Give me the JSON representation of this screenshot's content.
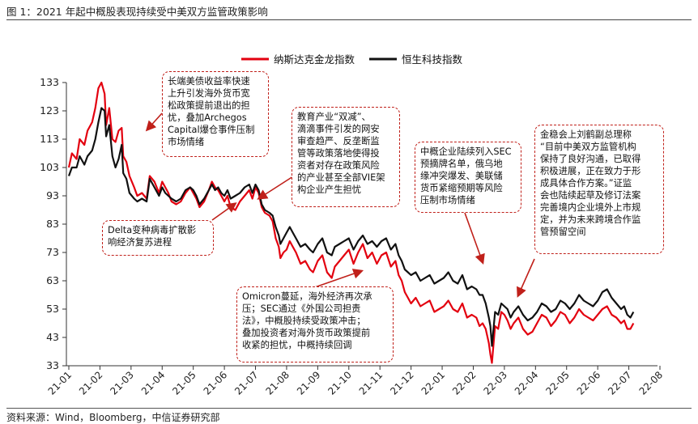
{
  "title": "图 1：2021 年起中概股表现持续受中美双方监管政策影响",
  "source": "资料来源：Wind，Bloomberg，中信证券研究部",
  "colors": {
    "nasdaq_china": "#e3000f",
    "hang_seng_tech": "#111111",
    "annotation_border": "#c0201a"
  },
  "chart_data": {
    "type": "line",
    "title": "",
    "xlabel": "",
    "ylabel": "",
    "ylim": [
      33,
      133
    ],
    "yticks": [
      33,
      43,
      53,
      63,
      73,
      83,
      93,
      103,
      113,
      123,
      133
    ],
    "x_tick_labels": [
      "21-01",
      "21-02",
      "21-03",
      "21-04",
      "21-05",
      "21-06",
      "21-07",
      "21-08",
      "21-09",
      "21-10",
      "21-11",
      "21-12",
      "22-01",
      "22-02",
      "22-03",
      "22-04",
      "22-05",
      "22-06",
      "22-07",
      "22-08"
    ],
    "legend_position": "top-center",
    "grid": false,
    "series": [
      {
        "name": "纳斯达克金龙指数",
        "color": "#e3000f",
        "points": [
          [
            0.0,
            103
          ],
          [
            0.1,
            108
          ],
          [
            0.25,
            106
          ],
          [
            0.35,
            113
          ],
          [
            0.5,
            111
          ],
          [
            0.6,
            116
          ],
          [
            0.75,
            119
          ],
          [
            0.85,
            124
          ],
          [
            0.95,
            131
          ],
          [
            1.05,
            133
          ],
          [
            1.15,
            129
          ],
          [
            1.2,
            118
          ],
          [
            1.3,
            124
          ],
          [
            1.4,
            113
          ],
          [
            1.5,
            112
          ],
          [
            1.6,
            116
          ],
          [
            1.7,
            117
          ],
          [
            1.75,
            107
          ],
          [
            1.85,
            105
          ],
          [
            1.95,
            100
          ],
          [
            2.1,
            96
          ],
          [
            2.2,
            93
          ],
          [
            2.35,
            94
          ],
          [
            2.5,
            92
          ],
          [
            2.6,
            100
          ],
          [
            2.75,
            98
          ],
          [
            2.9,
            94
          ],
          [
            3.0,
            98
          ],
          [
            3.1,
            96
          ],
          [
            3.2,
            94
          ],
          [
            3.3,
            91
          ],
          [
            3.45,
            90
          ],
          [
            3.6,
            91
          ],
          [
            3.75,
            94
          ],
          [
            3.9,
            96
          ],
          [
            4.0,
            94
          ],
          [
            4.1,
            92
          ],
          [
            4.2,
            89
          ],
          [
            4.35,
            91
          ],
          [
            4.5,
            95
          ],
          [
            4.6,
            98
          ],
          [
            4.7,
            96
          ],
          [
            4.8,
            95
          ],
          [
            4.9,
            93
          ],
          [
            5.0,
            91
          ],
          [
            5.1,
            93
          ],
          [
            5.2,
            89
          ],
          [
            5.35,
            88
          ],
          [
            5.5,
            91
          ],
          [
            5.65,
            93
          ],
          [
            5.8,
            95
          ],
          [
            5.9,
            92
          ],
          [
            6.0,
            96
          ],
          [
            6.1,
            94
          ],
          [
            6.2,
            89
          ],
          [
            6.3,
            87
          ],
          [
            6.45,
            86
          ],
          [
            6.55,
            84
          ],
          [
            6.65,
            78
          ],
          [
            6.75,
            75
          ],
          [
            6.8,
            71
          ],
          [
            6.9,
            73
          ],
          [
            7.0,
            74
          ],
          [
            7.1,
            77
          ],
          [
            7.2,
            75
          ],
          [
            7.3,
            73
          ],
          [
            7.45,
            69
          ],
          [
            7.6,
            70
          ],
          [
            7.75,
            67
          ],
          [
            7.85,
            66
          ],
          [
            8.0,
            70
          ],
          [
            8.15,
            72
          ],
          [
            8.3,
            66
          ],
          [
            8.45,
            64
          ],
          [
            8.55,
            68
          ],
          [
            8.7,
            70
          ],
          [
            8.85,
            72
          ],
          [
            9.0,
            74
          ],
          [
            9.15,
            69
          ],
          [
            9.3,
            73
          ],
          [
            9.45,
            76
          ],
          [
            9.6,
            71
          ],
          [
            9.75,
            73
          ],
          [
            9.9,
            69
          ],
          [
            10.05,
            72
          ],
          [
            10.2,
            73
          ],
          [
            10.35,
            68
          ],
          [
            10.5,
            70
          ],
          [
            10.6,
            65
          ],
          [
            10.7,
            63
          ],
          [
            10.8,
            59
          ],
          [
            10.9,
            57
          ],
          [
            11.0,
            55
          ],
          [
            11.15,
            57
          ],
          [
            11.3,
            54
          ],
          [
            11.45,
            55
          ],
          [
            11.6,
            56
          ],
          [
            11.75,
            52
          ],
          [
            11.9,
            53
          ],
          [
            12.05,
            54
          ],
          [
            12.2,
            56
          ],
          [
            12.35,
            53
          ],
          [
            12.5,
            52
          ],
          [
            12.65,
            55
          ],
          [
            12.8,
            50
          ],
          [
            12.95,
            51
          ],
          [
            13.1,
            50
          ],
          [
            13.2,
            47
          ],
          [
            13.3,
            48
          ],
          [
            13.4,
            46
          ],
          [
            13.5,
            41
          ],
          [
            13.55,
            37
          ],
          [
            13.6,
            34
          ],
          [
            13.7,
            47
          ],
          [
            13.8,
            46
          ],
          [
            13.9,
            52
          ],
          [
            14.0,
            51
          ],
          [
            14.1,
            49
          ],
          [
            14.2,
            46
          ],
          [
            14.3,
            48
          ],
          [
            14.45,
            50
          ],
          [
            14.6,
            46
          ],
          [
            14.75,
            44
          ],
          [
            14.9,
            45
          ],
          [
            15.05,
            48
          ],
          [
            15.2,
            51
          ],
          [
            15.35,
            50
          ],
          [
            15.5,
            47
          ],
          [
            15.65,
            49
          ],
          [
            15.8,
            52
          ],
          [
            15.95,
            51
          ],
          [
            16.1,
            48
          ],
          [
            16.25,
            50
          ],
          [
            16.4,
            53
          ],
          [
            16.55,
            51
          ],
          [
            16.7,
            50
          ],
          [
            16.85,
            49
          ],
          [
            17.0,
            51
          ],
          [
            17.15,
            53
          ],
          [
            17.3,
            54
          ],
          [
            17.45,
            51
          ],
          [
            17.6,
            50
          ],
          [
            17.75,
            48
          ],
          [
            17.85,
            49
          ],
          [
            17.95,
            46
          ],
          [
            18.05,
            46
          ],
          [
            18.15,
            48
          ]
        ]
      },
      {
        "name": "恒生科技指数",
        "color": "#111111",
        "points": [
          [
            0.0,
            100
          ],
          [
            0.1,
            103
          ],
          [
            0.25,
            103
          ],
          [
            0.35,
            107
          ],
          [
            0.5,
            104
          ],
          [
            0.6,
            107
          ],
          [
            0.75,
            109
          ],
          [
            0.85,
            113
          ],
          [
            0.95,
            119
          ],
          [
            1.05,
            124
          ],
          [
            1.15,
            123
          ],
          [
            1.2,
            114
          ],
          [
            1.3,
            118
          ],
          [
            1.4,
            107
          ],
          [
            1.5,
            103
          ],
          [
            1.6,
            106
          ],
          [
            1.7,
            111
          ],
          [
            1.75,
            101
          ],
          [
            1.85,
            99
          ],
          [
            1.95,
            94
          ],
          [
            2.1,
            92
          ],
          [
            2.2,
            91
          ],
          [
            2.35,
            92
          ],
          [
            2.5,
            91
          ],
          [
            2.6,
            99
          ],
          [
            2.75,
            96
          ],
          [
            2.9,
            93
          ],
          [
            3.0,
            96
          ],
          [
            3.1,
            94
          ],
          [
            3.2,
            93
          ],
          [
            3.3,
            92
          ],
          [
            3.45,
            91
          ],
          [
            3.6,
            92
          ],
          [
            3.75,
            95
          ],
          [
            3.9,
            96
          ],
          [
            4.0,
            95
          ],
          [
            4.1,
            93
          ],
          [
            4.2,
            90
          ],
          [
            4.35,
            92
          ],
          [
            4.5,
            95
          ],
          [
            4.6,
            97
          ],
          [
            4.7,
            95
          ],
          [
            4.8,
            96
          ],
          [
            4.9,
            94
          ],
          [
            5.0,
            93
          ],
          [
            5.1,
            95
          ],
          [
            5.2,
            92
          ],
          [
            5.35,
            93
          ],
          [
            5.5,
            94
          ],
          [
            5.65,
            96
          ],
          [
            5.8,
            97
          ],
          [
            5.9,
            94
          ],
          [
            6.0,
            97
          ],
          [
            6.1,
            95
          ],
          [
            6.2,
            90
          ],
          [
            6.3,
            88
          ],
          [
            6.45,
            87
          ],
          [
            6.55,
            86
          ],
          [
            6.65,
            82
          ],
          [
            6.75,
            79
          ],
          [
            6.8,
            76
          ],
          [
            6.9,
            78
          ],
          [
            7.0,
            80
          ],
          [
            7.1,
            82
          ],
          [
            7.2,
            80
          ],
          [
            7.3,
            78
          ],
          [
            7.45,
            75
          ],
          [
            7.6,
            76
          ],
          [
            7.75,
            74
          ],
          [
            7.85,
            73
          ],
          [
            8.0,
            76
          ],
          [
            8.15,
            78
          ],
          [
            8.3,
            73
          ],
          [
            8.45,
            72
          ],
          [
            8.55,
            75
          ],
          [
            8.7,
            76
          ],
          [
            8.85,
            77
          ],
          [
            9.0,
            78
          ],
          [
            9.15,
            74
          ],
          [
            9.3,
            77
          ],
          [
            9.45,
            79
          ],
          [
            9.6,
            76
          ],
          [
            9.75,
            77
          ],
          [
            9.9,
            75
          ],
          [
            10.05,
            77
          ],
          [
            10.2,
            78
          ],
          [
            10.35,
            74
          ],
          [
            10.5,
            76
          ],
          [
            10.6,
            72
          ],
          [
            10.7,
            70
          ],
          [
            10.8,
            67
          ],
          [
            10.9,
            66
          ],
          [
            11.0,
            65
          ],
          [
            11.15,
            66
          ],
          [
            11.3,
            63
          ],
          [
            11.45,
            64
          ],
          [
            11.6,
            65
          ],
          [
            11.75,
            62
          ],
          [
            11.9,
            63
          ],
          [
            12.05,
            64
          ],
          [
            12.2,
            66
          ],
          [
            12.35,
            63
          ],
          [
            12.5,
            62
          ],
          [
            12.65,
            65
          ],
          [
            12.8,
            60
          ],
          [
            12.95,
            61
          ],
          [
            13.1,
            60
          ],
          [
            13.2,
            58
          ],
          [
            13.3,
            58
          ],
          [
            13.4,
            55
          ],
          [
            13.5,
            50
          ],
          [
            13.55,
            47
          ],
          [
            13.6,
            40
          ],
          [
            13.7,
            52
          ],
          [
            13.8,
            51
          ],
          [
            13.9,
            55
          ],
          [
            14.0,
            54
          ],
          [
            14.1,
            53
          ],
          [
            14.2,
            50
          ],
          [
            14.3,
            52
          ],
          [
            14.45,
            54
          ],
          [
            14.6,
            51
          ],
          [
            14.75,
            49
          ],
          [
            14.9,
            50
          ],
          [
            15.05,
            52
          ],
          [
            15.2,
            55
          ],
          [
            15.35,
            54
          ],
          [
            15.5,
            52
          ],
          [
            15.65,
            53
          ],
          [
            15.8,
            56
          ],
          [
            15.95,
            55
          ],
          [
            16.1,
            53
          ],
          [
            16.25,
            55
          ],
          [
            16.4,
            58
          ],
          [
            16.55,
            56
          ],
          [
            16.7,
            55
          ],
          [
            16.85,
            54
          ],
          [
            17.0,
            56
          ],
          [
            17.15,
            59
          ],
          [
            17.3,
            60
          ],
          [
            17.45,
            57
          ],
          [
            17.6,
            55
          ],
          [
            17.75,
            53
          ],
          [
            17.85,
            54
          ],
          [
            17.95,
            51
          ],
          [
            18.05,
            50
          ],
          [
            18.15,
            52
          ]
        ]
      }
    ]
  },
  "annotations": [
    {
      "id": "bond-yield",
      "lines": [
        "长端美债收益率快速",
        "上升引发海外货币宽",
        "松政策提前退出的担",
        "忧，叠加Archegos",
        "Capital爆仓事件压制",
        "市场情绪"
      ]
    },
    {
      "id": "education-policy",
      "lines": [
        "教育产业“双减”、",
        "滴滴事件引发的网安",
        "审查趋严、反垄断监",
        "管等政策落地使得投",
        "资者对存在政策风险",
        "的产业甚至全部VIE架",
        "构企业产生担忧"
      ]
    },
    {
      "id": "delta",
      "lines": [
        "Delta变种病毒扩散影",
        "响经济复苏进程"
      ]
    },
    {
      "id": "sec-list",
      "lines": [
        "中概企业陆续列入SEC",
        "预摘牌名单，俄乌地",
        "缘冲突爆发、美联储",
        "货币紧缩预期等风险",
        "压制市场情绪"
      ]
    },
    {
      "id": "liu-he",
      "lines": [
        "金稳会上刘鹤副总理称",
        "“目前中美双方监管机构",
        "保持了良好沟通，已取得",
        "积极进展，正在致力于形",
        "成具体合作方案。”证监",
        "会也陆续起草及修订法案",
        "完善境内企业境外上市规",
        "定，并为未来跨境合作监",
        "管预留空间"
      ]
    },
    {
      "id": "omicron",
      "lines": [
        "Omicron蔓延，海外经济再次承",
        "压；SEC通过《外国公司担责",
        "法》，中概股持续受政策冲击；",
        "叠加投资者对海外货币政策提前",
        "收紧的担忧，中概持续回调"
      ]
    }
  ]
}
